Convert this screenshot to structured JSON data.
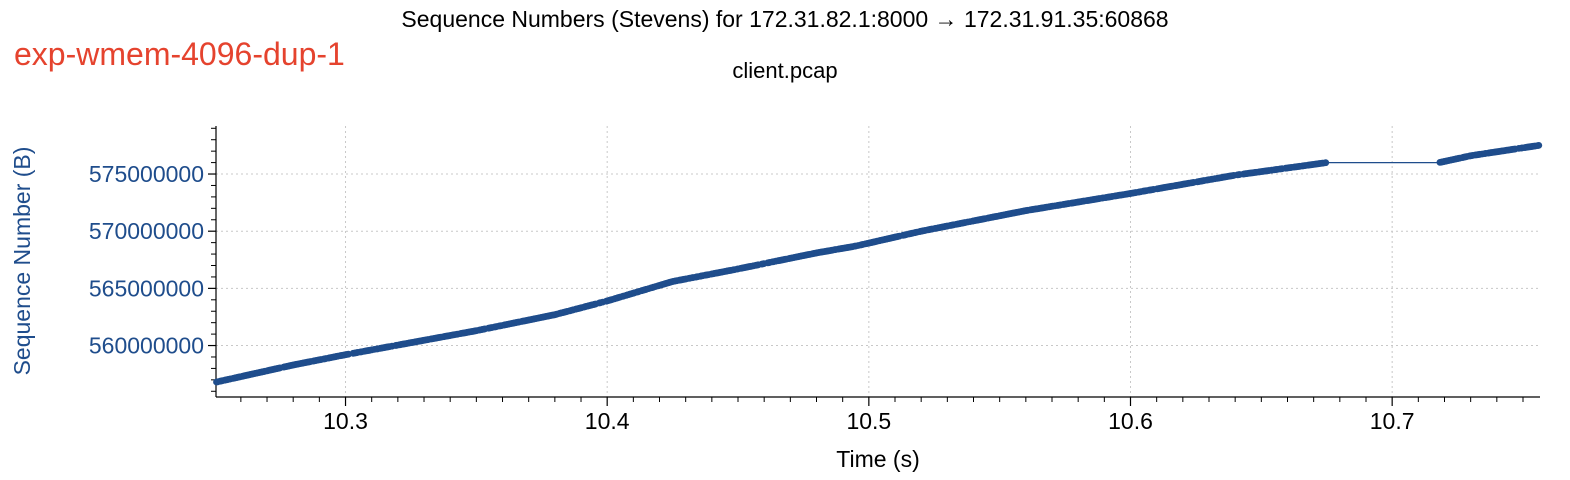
{
  "overlay_label": "exp-wmem-4096-dup-1",
  "chart_data": {
    "type": "scatter",
    "title": "Sequence Numbers (Stevens) for 172.31.82.1:8000 → 172.31.91.35:60868",
    "subtitle": "client.pcap",
    "xlabel": "Time (s)",
    "ylabel": "Sequence Number (B)",
    "xlim": [
      10.2505,
      10.7565
    ],
    "ylim": [
      555500000,
      579200000
    ],
    "x_ticks": [
      "10.3",
      "10.4",
      "10.5",
      "10.6",
      "10.7"
    ],
    "y_ticks": [
      "560000000",
      "565000000",
      "570000000",
      "575000000"
    ],
    "grid": true,
    "series_color": "#1f4d8c",
    "series": [
      {
        "x": [
          10.2505,
          10.28,
          10.3,
          10.35,
          10.38,
          10.4,
          10.425,
          10.45,
          10.48,
          10.495,
          10.52,
          10.56,
          10.6,
          10.64,
          10.675,
          10.718,
          10.73,
          10.756
        ],
        "y": [
          556800000,
          558300000,
          559200000,
          561300000,
          562700000,
          563900000,
          565600000,
          566700000,
          568100000,
          568700000,
          570000000,
          571800000,
          573300000,
          574900000,
          576000000,
          576000000,
          576600000,
          577500000
        ]
      }
    ],
    "gaps": [
      [
        10.675,
        10.718
      ]
    ]
  }
}
